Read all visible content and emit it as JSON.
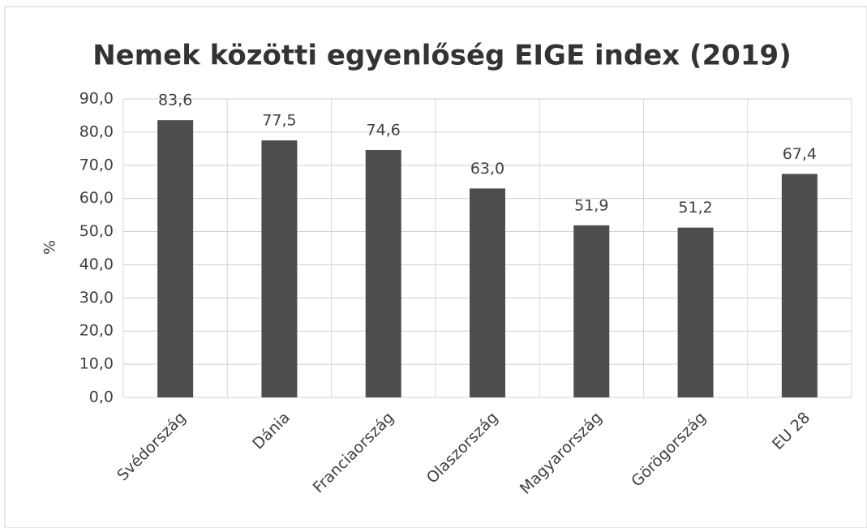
{
  "chart_data": {
    "type": "bar",
    "title": "Nemek közötti egyenlőség EIGE index (2019)",
    "y_label": "%",
    "categories": [
      "Svédország",
      "Dánia",
      "Franciaország",
      "Olaszország",
      "Magyarország",
      "Görögország",
      "EU 28"
    ],
    "values": [
      83.6,
      77.5,
      74.6,
      63.0,
      51.9,
      51.2,
      67.4
    ],
    "value_labels": [
      "83,6",
      "77,5",
      "74,6",
      "63,0",
      "51,9",
      "51,2",
      "67,4"
    ],
    "color": "#4d4d4d",
    "ylim": [
      0,
      90
    ],
    "yticks": [
      {
        "value": 0,
        "label": "0,0"
      },
      {
        "value": 10,
        "label": "10,0"
      },
      {
        "value": 20,
        "label": "20,0"
      },
      {
        "value": 30,
        "label": "30,0"
      },
      {
        "value": 40,
        "label": "40,0"
      },
      {
        "value": 50,
        "label": "50,0"
      },
      {
        "value": 60,
        "label": "60,0"
      },
      {
        "value": 70,
        "label": "70,0"
      },
      {
        "value": 80,
        "label": "80,0"
      },
      {
        "value": 90,
        "label": "90,0"
      }
    ],
    "grid": true
  }
}
